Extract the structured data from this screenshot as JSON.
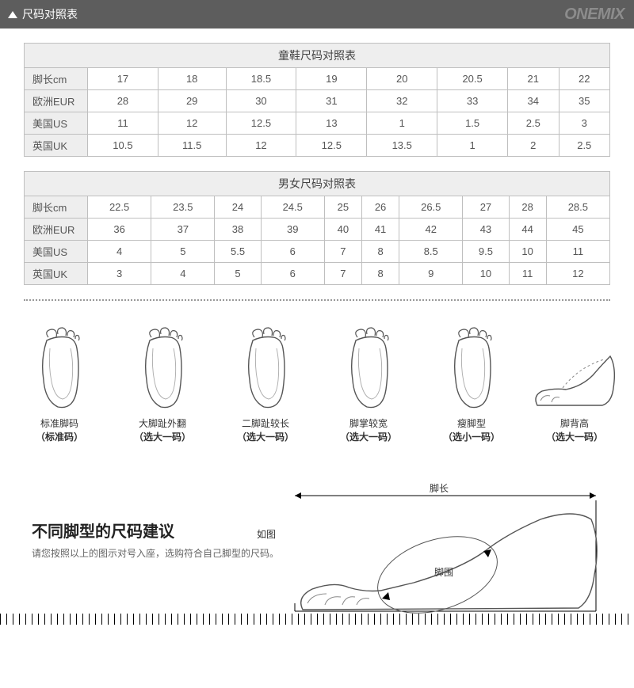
{
  "header": {
    "title": "尺码对照表",
    "brand": "ONEMIX"
  },
  "table_kids": {
    "caption": "童鞋尺码对照表",
    "rows": [
      {
        "label": "脚长cm",
        "cells": [
          "17",
          "18",
          "18.5",
          "19",
          "20",
          "20.5",
          "21",
          "22"
        ]
      },
      {
        "label": "欧洲EUR",
        "cells": [
          "28",
          "29",
          "30",
          "31",
          "32",
          "33",
          "34",
          "35"
        ]
      },
      {
        "label": "美国US",
        "cells": [
          "11",
          "12",
          "12.5",
          "13",
          "1",
          "1.5",
          "2.5",
          "3"
        ]
      },
      {
        "label": "英国UK",
        "cells": [
          "10.5",
          "11.5",
          "12",
          "12.5",
          "13.5",
          "1",
          "2",
          "2.5"
        ]
      }
    ]
  },
  "table_adult": {
    "caption": "男女尺码对照表",
    "rows": [
      {
        "label": "脚长cm",
        "cells": [
          "22.5",
          "23.5",
          "24",
          "24.5",
          "25",
          "26",
          "26.5",
          "27",
          "28",
          "28.5"
        ]
      },
      {
        "label": "欧洲EUR",
        "cells": [
          "36",
          "37",
          "38",
          "39",
          "40",
          "41",
          "42",
          "43",
          "44",
          "45"
        ]
      },
      {
        "label": "美国US",
        "cells": [
          "4",
          "5",
          "5.5",
          "6",
          "7",
          "8",
          "8.5",
          "9.5",
          "10",
          "11"
        ]
      },
      {
        "label": "英国UK",
        "cells": [
          "3",
          "4",
          "5",
          "6",
          "7",
          "8",
          "9",
          "10",
          "11",
          "12"
        ]
      }
    ]
  },
  "foot_types": [
    {
      "name": "标准脚码",
      "hint": "（标准码）"
    },
    {
      "name": "大脚趾外翻",
      "hint": "（选大一码）"
    },
    {
      "name": "二脚趾较长",
      "hint": "（选大一码）"
    },
    {
      "name": "脚掌较宽",
      "hint": "（选大一码）"
    },
    {
      "name": "瘦脚型",
      "hint": "（选小一码）"
    },
    {
      "name": "脚背高",
      "hint": "（选大一码）"
    }
  ],
  "advice": {
    "title": "不同脚型的尺码建议",
    "desc": "请您按照以上的图示对号入座，选购符合自己脚型的尺码。",
    "note": "如图"
  },
  "diagram": {
    "length_label": "脚长",
    "width_label": "脚围"
  },
  "colors": {
    "header_bg": "#5d5d5d",
    "border": "#bfbfbf",
    "alt_bg": "#eeeeee",
    "text": "#555555",
    "brand": "#8c8c8c",
    "stroke": "#444444"
  }
}
